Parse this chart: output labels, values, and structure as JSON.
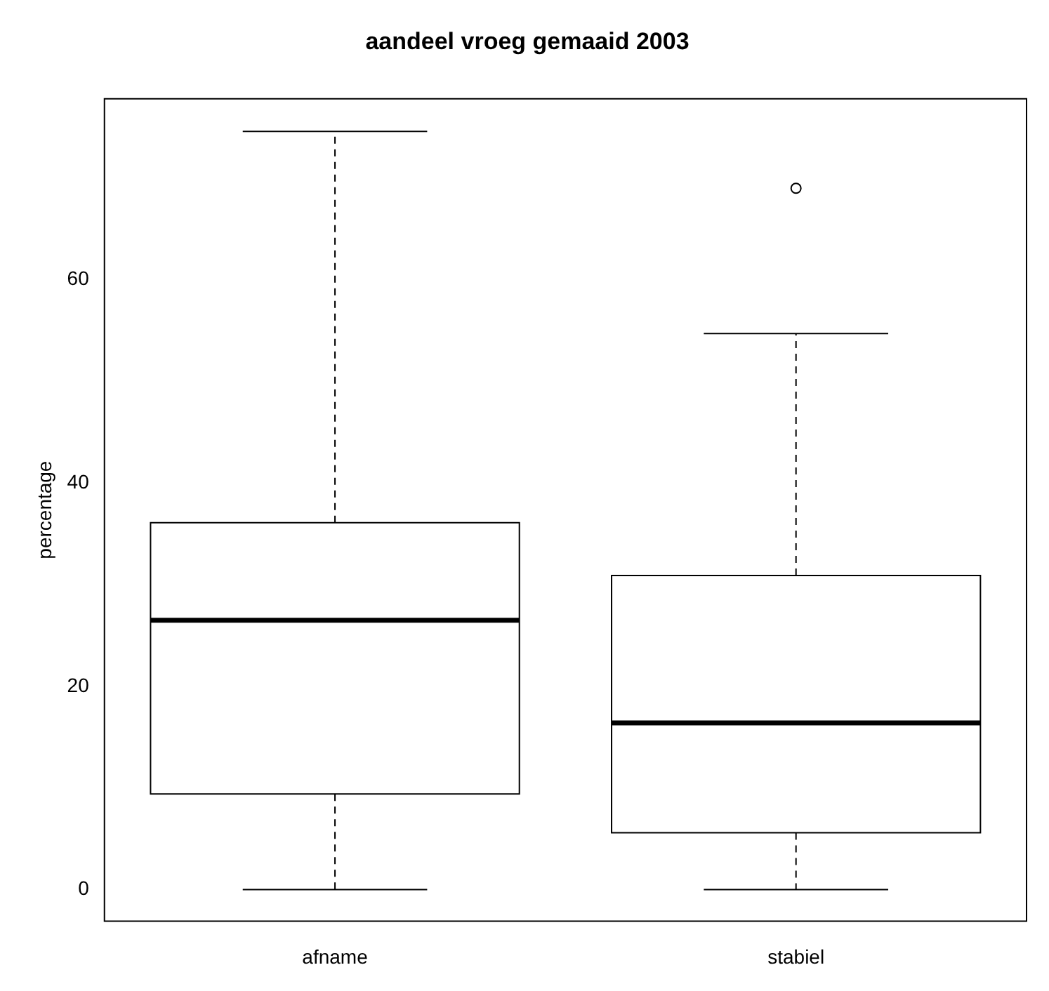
{
  "chart_data": {
    "type": "box",
    "title": "aandeel vroeg gemaaid 2003",
    "ylabel": "percentage",
    "categories": [
      "afname",
      "stabiel"
    ],
    "boxes": [
      {
        "low": 0,
        "q1": 9.4,
        "median": 26.5,
        "q3": 36.1,
        "high": 74.6
      },
      {
        "low": 0,
        "q1": 5.6,
        "median": 16.4,
        "q3": 30.9,
        "high": 54.7,
        "outliers": [
          69.0
        ]
      }
    ],
    "ylim": [
      -3.1,
      77.8
    ],
    "yticks": [
      0,
      20,
      40,
      60
    ],
    "grid": false,
    "legend": false
  }
}
